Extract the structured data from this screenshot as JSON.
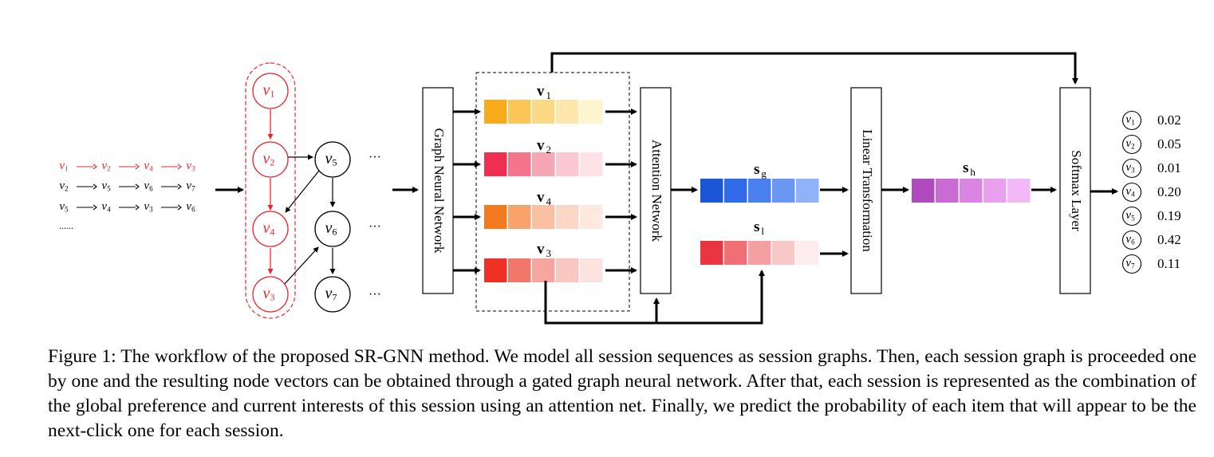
{
  "sequences": {
    "seq1": [
      "v1",
      "v2",
      "v4",
      "v3"
    ],
    "seq2": [
      "v2",
      "v5",
      "v6",
      "v7"
    ],
    "seq3": [
      "v5",
      "v4",
      "v3",
      "v6"
    ],
    "more": "......"
  },
  "graph_nodes": [
    "v1",
    "v2",
    "v4",
    "v3",
    "v5",
    "v6",
    "v7"
  ],
  "ellipsis": "···",
  "modules": {
    "gnn": "Graph Neural Network",
    "attention": "Attention Network",
    "linear": "Linear Transformation",
    "softmax": "Softmax Layer"
  },
  "vectors": {
    "v1": "v",
    "v1_sub": "1",
    "v2": "v",
    "v2_sub": "2",
    "v4": "v",
    "v4_sub": "4",
    "v3": "v",
    "v3_sub": "3",
    "sg": "s",
    "sg_sub": "g",
    "sl": "s",
    "sl_sub": "l",
    "sh": "s",
    "sh_sub": "h"
  },
  "output": [
    {
      "node": "v1",
      "prob": "0.02"
    },
    {
      "node": "v2",
      "prob": "0.05"
    },
    {
      "node": "v3",
      "prob": "0.01"
    },
    {
      "node": "v4",
      "prob": "0.20"
    },
    {
      "node": "v5",
      "prob": "0.19"
    },
    {
      "node": "v6",
      "prob": "0.42"
    },
    {
      "node": "v7",
      "prob": "0.11"
    }
  ],
  "colors": {
    "session": "#e8282f",
    "v1": [
      "#f9ab1c",
      "#fbc657",
      "#fcd985",
      "#fde7ab",
      "#fef5cf"
    ],
    "v2": [
      "#ee2f52",
      "#f3748b",
      "#f7a6b5",
      "#fac8d1",
      "#fde3e7"
    ],
    "v4": [
      "#f47a1f",
      "#f7a36a",
      "#f9c1a1",
      "#fbd7c6",
      "#fde9e0"
    ],
    "v3": [
      "#ee3124",
      "#f2766a",
      "#f7a69f",
      "#fac6c0",
      "#fde3e0"
    ],
    "sg": [
      "#1a56d6",
      "#2f6ae8",
      "#4b80f0",
      "#6a96f4",
      "#8fb2f8"
    ],
    "sl": [
      "#e8353f",
      "#ef6f74",
      "#f4a0a2",
      "#f8c8c9",
      "#fceced"
    ],
    "sh": [
      "#b04bbf",
      "#c96bd3",
      "#db85e3",
      "#e8a0ef",
      "#f3b8f7"
    ]
  },
  "caption": "Figure 1: The workflow of the proposed SR-GNN method. We model all session sequences as session graphs. Then, each session graph is proceeded one by one and the resulting node vectors can be obtained through a gated graph neural network. After that, each session is represented as the combination of the global preference and current interests of this session using an attention net. Finally, we predict the probability of each item that will appear to be the next-click one for each session."
}
